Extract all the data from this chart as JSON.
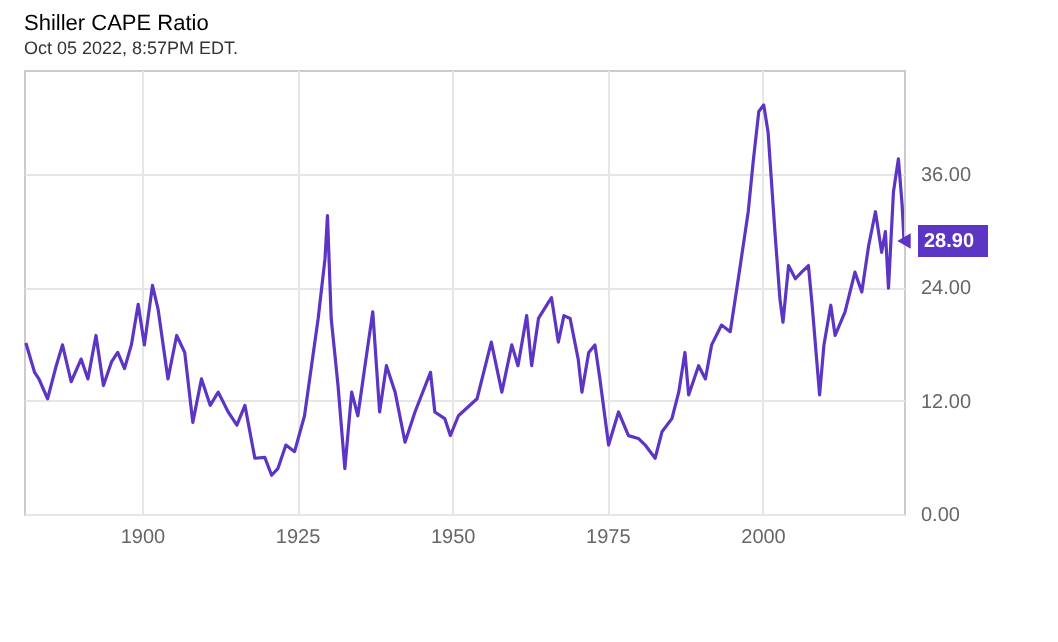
{
  "chart_data": {
    "type": "line",
    "title": "Shiller CAPE Ratio",
    "x": [
      1881.3,
      1882.7,
      1883.4,
      1884.8,
      1886.2,
      1887.2,
      1888.6,
      1890.2,
      1891.3,
      1892.6,
      1893.8,
      1895.1,
      1896.1,
      1897.2,
      1898.3,
      1899.4,
      1900.4,
      1901.7,
      1902.6,
      1904.2,
      1905.6,
      1906.9,
      1908.2,
      1909.6,
      1911.0,
      1912.3,
      1913.9,
      1915.3,
      1916.6,
      1918.2,
      1919.8,
      1920.9,
      1921.9,
      1923.2,
      1924.6,
      1926.2,
      1928.4,
      1929.5,
      1929.9,
      1930.5,
      1931.6,
      1932.7,
      1933.8,
      1934.8,
      1936.1,
      1937.2,
      1938.3,
      1939.4,
      1940.8,
      1942.4,
      1944.0,
      1946.5,
      1947.2,
      1948.8,
      1949.7,
      1951.0,
      1954.0,
      1956.3,
      1958.0,
      1959.6,
      1960.6,
      1962.0,
      1962.8,
      1963.9,
      1965.5,
      1966.0,
      1967.1,
      1968.0,
      1969.0,
      1970.3,
      1970.9,
      1972.0,
      1973.0,
      1973.8,
      1975.2,
      1976.8,
      1978.4,
      1980.0,
      1981.1,
      1982.7,
      1983.8,
      1985.4,
      1986.5,
      1987.5,
      1988.1,
      1989.7,
      1990.8,
      1991.8,
      1993.4,
      1994.8,
      1996.1,
      1997.7,
      1998.5,
      1999.4,
      2000.2,
      2000.9,
      2002.0,
      2002.8,
      2003.3,
      2004.2,
      2005.3,
      2006.3,
      2007.4,
      2008.0,
      2009.2,
      2009.9,
      2011.0,
      2011.7,
      2013.3,
      2014.9,
      2016.0,
      2017.1,
      2018.2,
      2019.2,
      2019.8,
      2020.3,
      2021.1,
      2021.9,
      2022.5,
      2022.8
    ],
    "series": [
      {
        "color": "#5c35c4",
        "values": [
          18.1,
          15.0,
          14.3,
          12.2,
          15.7,
          17.9,
          14.0,
          16.4,
          14.3,
          18.9,
          13.6,
          16.1,
          17.1,
          15.4,
          17.9,
          22.2,
          17.9,
          24.2,
          21.7,
          14.3,
          18.9,
          17.1,
          9.7,
          14.3,
          11.5,
          12.9,
          10.8,
          9.4,
          11.5,
          5.9,
          6.0,
          4.1,
          4.8,
          7.3,
          6.6,
          10.4,
          20.7,
          27.0,
          31.6,
          20.7,
          13.6,
          4.8,
          12.9,
          10.4,
          16.4,
          21.4,
          10.8,
          15.7,
          12.9,
          7.6,
          10.8,
          15.0,
          10.8,
          10.1,
          8.3,
          10.4,
          12.2,
          18.2,
          12.9,
          17.9,
          15.7,
          21.0,
          15.7,
          20.7,
          22.4,
          22.9,
          18.2,
          21.0,
          20.7,
          16.4,
          12.9,
          17.1,
          17.9,
          14.3,
          7.3,
          10.8,
          8.3,
          8.0,
          7.3,
          5.9,
          8.7,
          10.1,
          12.9,
          17.1,
          12.6,
          15.7,
          14.3,
          17.9,
          20.0,
          19.3,
          24.9,
          32.0,
          37.3,
          42.6,
          43.3,
          40.4,
          29.9,
          22.8,
          20.3,
          26.3,
          24.9,
          25.6,
          26.3,
          22.1,
          12.6,
          17.9,
          22.1,
          18.9,
          21.4,
          25.6,
          23.5,
          28.4,
          32.0,
          27.7,
          29.9,
          23.9,
          34.1,
          37.6,
          32.7,
          28.9
        ]
      }
    ],
    "xlim": [
      1881,
      2022.8
    ],
    "xticks": [
      1900,
      1925,
      1950,
      1975,
      2000
    ],
    "ylim": [
      0,
      47
    ],
    "yticks": [
      {
        "value": 0,
        "label": "0.00"
      },
      {
        "value": 12,
        "label": "12.00"
      },
      {
        "value": 24,
        "label": "24.00"
      },
      {
        "value": 36,
        "label": "36.00"
      }
    ],
    "grid": true,
    "line_style": "solid",
    "annotations": [
      {
        "text": "28.90",
        "x": 2022.8,
        "y": 28.9
      },
      "Oct 05 2022, 8:57PM EDT."
    ]
  }
}
